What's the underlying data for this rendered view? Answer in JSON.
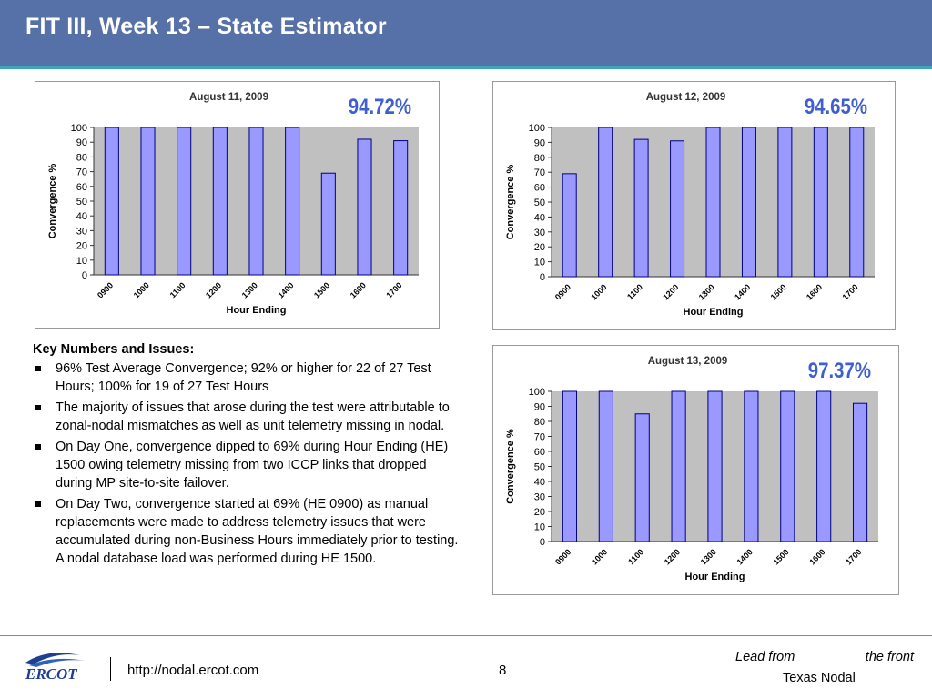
{
  "slide": {
    "title": "FIT III, Week 13 – State Estimator"
  },
  "issues": {
    "heading": "Key Numbers and Issues:",
    "items": [
      "96% Test Average Convergence; 92% or higher for 22 of 27 Test Hours; 100% for 19 of 27 Test Hours",
      "The majority of issues that arose during the test were attributable to zonal-nodal mismatches as well as unit telemetry missing in nodal.",
      "On Day One, convergence dipped to 69% during Hour Ending (HE) 1500 owing telemetry missing from two ICCP links that dropped during MP site-to-site failover.",
      "On Day Two, convergence started at 69% (HE 0900) as manual replacements were made to address telemetry issues that were accumulated during non-Business Hours immediately prior to testing. A nodal database load was performed during HE 1500."
    ]
  },
  "footer": {
    "url": "http://nodal.ercot.com",
    "page": "8",
    "tagline_1": "Lead from",
    "tagline_2": "the front",
    "brand": "Texas Nodal",
    "logo_text": "ERCOT"
  },
  "colors": {
    "title_bar": "#5670a8",
    "accent_line": "#3ea6b4",
    "bar_fill": "#9999ff",
    "plot_bg": "#c0c0c0",
    "percent_text": "#3f5fd0"
  },
  "chart_data": [
    {
      "type": "bar",
      "title": "August 11, 2009",
      "annotation": "94.72%",
      "categories": [
        "0900",
        "1000",
        "1100",
        "1200",
        "1300",
        "1400",
        "1500",
        "1600",
        "1700"
      ],
      "values": [
        100,
        100,
        100,
        100,
        100,
        100,
        69,
        92,
        91
      ],
      "xlabel": "Hour Ending",
      "ylabel": "Convergence %",
      "ylim": [
        0,
        100
      ],
      "yticks": [
        0,
        10,
        20,
        30,
        40,
        50,
        60,
        70,
        80,
        90,
        100
      ],
      "grid": false,
      "legend": "none"
    },
    {
      "type": "bar",
      "title": "August 12, 2009",
      "annotation": "94.65%",
      "categories": [
        "0900",
        "1000",
        "1100",
        "1200",
        "1300",
        "1400",
        "1500",
        "1600",
        "1700"
      ],
      "values": [
        69,
        100,
        92,
        91,
        100,
        100,
        100,
        100,
        100
      ],
      "xlabel": "Hour Ending",
      "ylabel": "Convergence %",
      "ylim": [
        0,
        100
      ],
      "yticks": [
        0,
        10,
        20,
        30,
        40,
        50,
        60,
        70,
        80,
        90,
        100
      ],
      "grid": false,
      "legend": "none"
    },
    {
      "type": "bar",
      "title": "August 13, 2009",
      "annotation": "97.37%",
      "categories": [
        "0900",
        "1000",
        "1100",
        "1200",
        "1300",
        "1400",
        "1500",
        "1600",
        "1700"
      ],
      "values": [
        100,
        100,
        85,
        100,
        100,
        100,
        100,
        100,
        92
      ],
      "xlabel": "Hour Ending",
      "ylabel": "Convergence %",
      "ylim": [
        0,
        100
      ],
      "yticks": [
        0,
        10,
        20,
        30,
        40,
        50,
        60,
        70,
        80,
        90,
        100
      ],
      "grid": false,
      "legend": "none"
    }
  ]
}
